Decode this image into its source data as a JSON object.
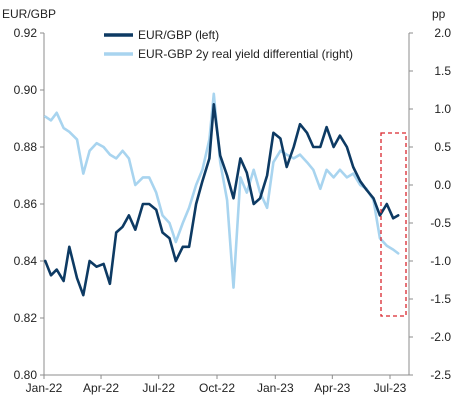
{
  "chart_data": {
    "type": "line",
    "left_axis_label": "EUR/GBP",
    "right_axis_label": "pp",
    "x_ticks": [
      "Jan-22",
      "Apr-22",
      "Jul-22",
      "Oct-22",
      "Jan-23",
      "Apr-23",
      "Jul-23"
    ],
    "left_ticks": [
      "0.80",
      "0.82",
      "0.84",
      "0.86",
      "0.88",
      "0.90",
      "0.92"
    ],
    "right_ticks": [
      "-2.5",
      "-2.0",
      "-1.5",
      "-1.0",
      "-0.5",
      "0.0",
      "0.5",
      "1.0",
      "1.5",
      "2.0"
    ],
    "ylim_left": [
      0.8,
      0.92
    ],
    "ylim_right": [
      -2.5,
      2.0
    ],
    "grid": false,
    "legend_position": "top-center",
    "annotation": "dashed red box highlighting Jun-23 to Jul-23",
    "colors": {
      "left_series": "#0d3a63",
      "right_series": "#a8d4ef",
      "highlight": "#d9272e",
      "axis": "#8c8c8c"
    },
    "series": [
      {
        "name": "EUR/GBP (left)",
        "axis": "left",
        "points": [
          [
            "2022-01-03",
            0.84
          ],
          [
            "2022-01-12",
            0.835
          ],
          [
            "2022-01-21",
            0.837
          ],
          [
            "2022-02-01",
            0.833
          ],
          [
            "2022-02-10",
            0.845
          ],
          [
            "2022-02-22",
            0.834
          ],
          [
            "2022-03-04",
            0.828
          ],
          [
            "2022-03-14",
            0.84
          ],
          [
            "2022-03-25",
            0.838
          ],
          [
            "2022-04-05",
            0.839
          ],
          [
            "2022-04-15",
            0.832
          ],
          [
            "2022-04-25",
            0.85
          ],
          [
            "2022-05-05",
            0.852
          ],
          [
            "2022-05-15",
            0.856
          ],
          [
            "2022-05-25",
            0.851
          ],
          [
            "2022-06-06",
            0.86
          ],
          [
            "2022-06-16",
            0.86
          ],
          [
            "2022-06-27",
            0.858
          ],
          [
            "2022-07-07",
            0.85
          ],
          [
            "2022-07-18",
            0.848
          ],
          [
            "2022-07-28",
            0.84
          ],
          [
            "2022-08-08",
            0.845
          ],
          [
            "2022-08-18",
            0.845
          ],
          [
            "2022-08-29",
            0.86
          ],
          [
            "2022-09-08",
            0.868
          ],
          [
            "2022-09-19",
            0.876
          ],
          [
            "2022-09-26",
            0.895
          ],
          [
            "2022-10-06",
            0.877
          ],
          [
            "2022-10-17",
            0.87
          ],
          [
            "2022-10-27",
            0.862
          ],
          [
            "2022-11-07",
            0.876
          ],
          [
            "2022-11-17",
            0.871
          ],
          [
            "2022-11-28",
            0.86
          ],
          [
            "2022-12-08",
            0.862
          ],
          [
            "2022-12-19",
            0.87
          ],
          [
            "2022-12-29",
            0.885
          ],
          [
            "2023-01-09",
            0.883
          ],
          [
            "2023-01-19",
            0.873
          ],
          [
            "2023-01-30",
            0.88
          ],
          [
            "2023-02-09",
            0.888
          ],
          [
            "2023-02-20",
            0.885
          ],
          [
            "2023-03-02",
            0.88
          ],
          [
            "2023-03-13",
            0.88
          ],
          [
            "2023-03-23",
            0.887
          ],
          [
            "2023-04-03",
            0.88
          ],
          [
            "2023-04-13",
            0.884
          ],
          [
            "2023-04-24",
            0.88
          ],
          [
            "2023-05-04",
            0.873
          ],
          [
            "2023-05-15",
            0.868
          ],
          [
            "2023-05-25",
            0.865
          ],
          [
            "2023-06-05",
            0.862
          ],
          [
            "2023-06-15",
            0.856
          ],
          [
            "2023-06-26",
            0.86
          ],
          [
            "2023-07-06",
            0.855
          ],
          [
            "2023-07-14",
            0.856
          ]
        ]
      },
      {
        "name": "EUR-GBP 2y real yield differential (right)",
        "axis": "right",
        "points": [
          [
            "2022-01-03",
            0.9
          ],
          [
            "2022-01-12",
            0.85
          ],
          [
            "2022-01-21",
            0.95
          ],
          [
            "2022-02-01",
            0.75
          ],
          [
            "2022-02-10",
            0.7
          ],
          [
            "2022-02-22",
            0.6
          ],
          [
            "2022-03-04",
            0.15
          ],
          [
            "2022-03-14",
            0.45
          ],
          [
            "2022-03-25",
            0.55
          ],
          [
            "2022-04-05",
            0.5
          ],
          [
            "2022-04-15",
            0.4
          ],
          [
            "2022-04-25",
            0.35
          ],
          [
            "2022-05-05",
            0.45
          ],
          [
            "2022-05-15",
            0.35
          ],
          [
            "2022-05-25",
            0.0
          ],
          [
            "2022-06-06",
            0.1
          ],
          [
            "2022-06-16",
            0.1
          ],
          [
            "2022-06-27",
            -0.1
          ],
          [
            "2022-07-07",
            -0.4
          ],
          [
            "2022-07-18",
            -0.5
          ],
          [
            "2022-07-28",
            -0.75
          ],
          [
            "2022-08-08",
            -0.5
          ],
          [
            "2022-08-18",
            -0.3
          ],
          [
            "2022-08-29",
            0.0
          ],
          [
            "2022-09-08",
            0.2
          ],
          [
            "2022-09-19",
            0.6
          ],
          [
            "2022-09-26",
            1.2
          ],
          [
            "2022-10-06",
            0.3
          ],
          [
            "2022-10-17",
            -0.2
          ],
          [
            "2022-10-27",
            -1.35
          ],
          [
            "2022-11-07",
            0.1
          ],
          [
            "2022-11-17",
            -0.1
          ],
          [
            "2022-11-28",
            0.2
          ],
          [
            "2022-12-08",
            -0.1
          ],
          [
            "2022-12-19",
            -0.3
          ],
          [
            "2022-12-29",
            0.3
          ],
          [
            "2023-01-09",
            0.45
          ],
          [
            "2023-01-19",
            0.4
          ],
          [
            "2023-01-30",
            0.35
          ],
          [
            "2023-02-09",
            0.4
          ],
          [
            "2023-02-20",
            0.3
          ],
          [
            "2023-03-02",
            0.2
          ],
          [
            "2023-03-13",
            -0.05
          ],
          [
            "2023-03-23",
            0.2
          ],
          [
            "2023-04-03",
            0.1
          ],
          [
            "2023-04-13",
            0.2
          ],
          [
            "2023-04-24",
            0.1
          ],
          [
            "2023-05-04",
            0.15
          ],
          [
            "2023-05-15",
            0.0
          ],
          [
            "2023-05-25",
            -0.05
          ],
          [
            "2023-06-05",
            -0.2
          ],
          [
            "2023-06-15",
            -0.7
          ],
          [
            "2023-06-26",
            -0.8
          ],
          [
            "2023-07-06",
            -0.85
          ],
          [
            "2023-07-14",
            -0.9
          ]
        ]
      }
    ]
  }
}
